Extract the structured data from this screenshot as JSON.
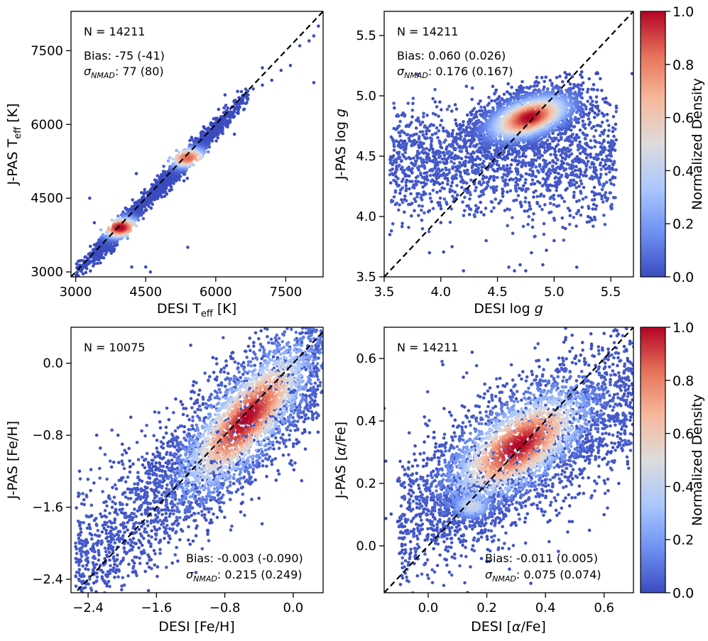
{
  "colorbar": {
    "label": "Normalized Density",
    "ticks": [
      "0.0",
      "0.2",
      "0.4",
      "0.6",
      "0.8",
      "1.0"
    ],
    "colors": [
      "#3b4cc0",
      "#6f92f3",
      "#aac7fd",
      "#dddcdc",
      "#f7b89c",
      "#e7745b",
      "#b40426"
    ]
  },
  "chart_data": [
    {
      "id": "teff",
      "type": "scatter",
      "title": "",
      "xlabel": "DESI T_eff [K]",
      "ylabel": "J-PAS T_eff [K]",
      "xlabel_main": "DESI T",
      "ylabel_main": "J-PAS T",
      "label_sub": "eff",
      "label_unit": " [K]",
      "xlim": [
        2900,
        8300
      ],
      "ylim": [
        2900,
        8300
      ],
      "xticks": [
        3000,
        4500,
        6000,
        7500
      ],
      "yticks": [
        3000,
        4500,
        6000,
        7500
      ],
      "xtick_labels": [
        "3000",
        "4500",
        "6000",
        "7500"
      ],
      "ytick_labels": [
        "3000",
        "4500",
        "6000",
        "7500"
      ],
      "n_label": "N = 14211",
      "stats_position": "top-left",
      "bias_label": "Bias: -75 (-41)",
      "nmad_label": ": 77 (80)",
      "identity_line": [
        [
          2900,
          2900
        ],
        [
          8300,
          8300
        ]
      ],
      "density_model": {
        "type": "diagonal",
        "x_range": [
          3000,
          6700
        ],
        "slope": 1.0,
        "offset": -75,
        "spread": 120,
        "peaks": [
          {
            "x": 3950,
            "y": 3900,
            "w": 1.0
          },
          {
            "x": 5400,
            "y": 5320,
            "w": 0.85
          }
        ]
      },
      "outliers": [
        [
          3300,
          4500
        ],
        [
          3400,
          4000
        ],
        [
          4200,
          3100
        ],
        [
          4500,
          3100
        ],
        [
          4600,
          3000
        ],
        [
          5400,
          3500
        ],
        [
          4300,
          5000
        ],
        [
          5100,
          4800
        ],
        [
          6600,
          6300
        ],
        [
          7000,
          6800
        ],
        [
          7400,
          7100
        ],
        [
          7600,
          7200
        ],
        [
          7800,
          7600
        ],
        [
          8000,
          7700
        ],
        [
          8100,
          7800
        ],
        [
          8100,
          6850
        ],
        [
          8200,
          8000
        ],
        [
          7200,
          6900
        ],
        [
          6400,
          5800
        ],
        [
          6200,
          6600
        ],
        [
          3600,
          3700
        ],
        [
          3200,
          3300
        ]
      ]
    },
    {
      "id": "logg",
      "type": "scatter",
      "title": "",
      "xlabel": "DESI log g",
      "ylabel": "J-PAS log g",
      "xlabel_main": "DESI log",
      "ylabel_main": "J-PAS log",
      "label_italic": "g",
      "xlim": [
        3.5,
        5.7
      ],
      "ylim": [
        3.5,
        5.7
      ],
      "xticks": [
        3.5,
        4.0,
        4.5,
        5.0,
        5.5
      ],
      "yticks": [
        3.5,
        4.0,
        4.5,
        5.0,
        5.5
      ],
      "xtick_labels": [
        "3.5",
        "4.0",
        "4.5",
        "5.0",
        "5.5"
      ],
      "ytick_labels": [
        "3.5",
        "4.0",
        "4.5",
        "5.0",
        "5.5"
      ],
      "n_label": "N = 14211",
      "stats_position": "top-left",
      "bias_label": "Bias: 0.060 (0.026)",
      "nmad_label": ": 0.176 (0.167)",
      "identity_line": [
        [
          3.5,
          3.5
        ],
        [
          5.7,
          5.7
        ]
      ],
      "density_model": {
        "type": "blob",
        "center": [
          4.78,
          4.82
        ],
        "sx": 0.2,
        "sy": 0.09,
        "tilt": 0.25,
        "halo": {
          "x_range": [
            3.55,
            5.55
          ],
          "y_center": 4.45,
          "y_spread": 0.22
        }
      },
      "outliers": [
        [
          3.55,
          3.85
        ],
        [
          3.6,
          4.1
        ],
        [
          3.7,
          4.3
        ],
        [
          3.9,
          3.7
        ],
        [
          4.0,
          3.95
        ],
        [
          4.2,
          3.55
        ],
        [
          4.1,
          3.75
        ],
        [
          4.6,
          3.58
        ],
        [
          4.65,
          3.55
        ],
        [
          4.7,
          3.6
        ],
        [
          4.75,
          3.55
        ],
        [
          4.9,
          3.6
        ],
        [
          5.2,
          3.58
        ],
        [
          5.0,
          3.8
        ],
        [
          5.1,
          3.9
        ],
        [
          4.8,
          3.7
        ],
        [
          4.4,
          3.8
        ],
        [
          5.3,
          4.0
        ],
        [
          5.5,
          4.6
        ],
        [
          5.35,
          4.1
        ],
        [
          3.95,
          4.95
        ],
        [
          3.8,
          4.8
        ],
        [
          5.55,
          4.9
        ],
        [
          4.3,
          4.0
        ]
      ]
    },
    {
      "id": "feh",
      "type": "scatter",
      "title": "",
      "xlabel": "DESI [Fe/H]",
      "ylabel": "J-PAS [Fe/H]",
      "xlim": [
        -2.6,
        0.35
      ],
      "ylim": [
        -2.55,
        0.4
      ],
      "xticks": [
        -2.4,
        -1.6,
        -0.8,
        0.0
      ],
      "yticks": [
        -2.4,
        -1.6,
        -0.8,
        0.0
      ],
      "xtick_labels": [
        "−2.4",
        "−1.6",
        "−0.8",
        "0.0"
      ],
      "ytick_labels": [
        "−2.4",
        "−1.6",
        "−0.8",
        "0.0"
      ],
      "n_label": "N = 10075",
      "stats_position": "bottom-right",
      "bias_label": "Bias: -0.003 (-0.090)",
      "nmad_label": ": 0.215 (0.249)",
      "identity_line": [
        [
          -2.6,
          -2.6
        ],
        [
          0.4,
          0.4
        ]
      ],
      "density_model": {
        "type": "blob",
        "center": [
          -0.55,
          -0.62
        ],
        "sx": 0.42,
        "sy": 0.28,
        "tilt": 0.85,
        "halo": {
          "x_range": [
            -2.55,
            0.3
          ],
          "slope": 0.78,
          "offset": -0.25,
          "spread": 0.28
        }
      },
      "outliers": [
        [
          -2.3,
          -0.8
        ],
        [
          -2.05,
          -0.8
        ],
        [
          -2.0,
          -0.9
        ],
        [
          -2.3,
          -2.0
        ],
        [
          -2.5,
          -1.9
        ],
        [
          -1.75,
          -2.1
        ],
        [
          -2.1,
          -1.1
        ],
        [
          -1.9,
          -0.6
        ],
        [
          -1.2,
          0.2
        ],
        [
          -0.9,
          0.05
        ],
        [
          0.1,
          -0.6
        ],
        [
          0.2,
          -0.3
        ],
        [
          0.3,
          0.15
        ],
        [
          -0.2,
          -1.3
        ],
        [
          -0.4,
          -1.5
        ],
        [
          -2.5,
          -1.2
        ],
        [
          -1.0,
          -1.9
        ]
      ]
    },
    {
      "id": "alpha",
      "type": "scatter",
      "title": "",
      "xlabel": "DESI [α/Fe]",
      "ylabel": "J-PAS [α/Fe]",
      "xlabel_main": "DESI [",
      "ylabel_main": "J-PAS [",
      "label_italic": "α",
      "label_tail": "/Fe]",
      "xlim": [
        -0.15,
        0.7
      ],
      "ylim": [
        -0.15,
        0.7
      ],
      "xticks": [
        0.0,
        0.2,
        0.4,
        0.6
      ],
      "yticks": [
        0.0,
        0.2,
        0.4,
        0.6
      ],
      "xtick_labels": [
        "0.0",
        "0.2",
        "0.4",
        "0.6"
      ],
      "ytick_labels": [
        "0.0",
        "0.2",
        "0.4",
        "0.6"
      ],
      "n_label": "N = 14211",
      "stats_position": "bottom-right",
      "bias_label": "Bias: -0.011 (0.005)",
      "nmad_label": ": 0.075 (0.074)",
      "identity_line": [
        [
          -0.15,
          -0.15
        ],
        [
          0.7,
          0.7
        ]
      ],
      "density_model": {
        "type": "blob",
        "center": [
          0.31,
          0.32
        ],
        "sx": 0.13,
        "sy": 0.075,
        "tilt": 0.5,
        "second": [
          0.15,
          0.13
        ],
        "halo": {
          "x_range": [
            -0.1,
            0.7
          ],
          "slope": 0.55,
          "offset": 0.1,
          "spread": 0.09
        }
      },
      "outliers": [
        [
          -0.15,
          0.44
        ],
        [
          0.05,
          0.58
        ],
        [
          0.12,
          0.54
        ],
        [
          0.15,
          0.62
        ],
        [
          0.45,
          0.58
        ],
        [
          0.5,
          0.6
        ],
        [
          0.6,
          0.68
        ],
        [
          0.68,
          0.6
        ],
        [
          0.55,
          0.05
        ],
        [
          0.35,
          -0.12
        ],
        [
          0.6,
          0.1
        ],
        [
          0.2,
          -0.05
        ],
        [
          0.0,
          0.35
        ],
        [
          -0.05,
          0.2
        ],
        [
          0.65,
          0.2
        ],
        [
          0.7,
          0.5
        ]
      ]
    }
  ]
}
